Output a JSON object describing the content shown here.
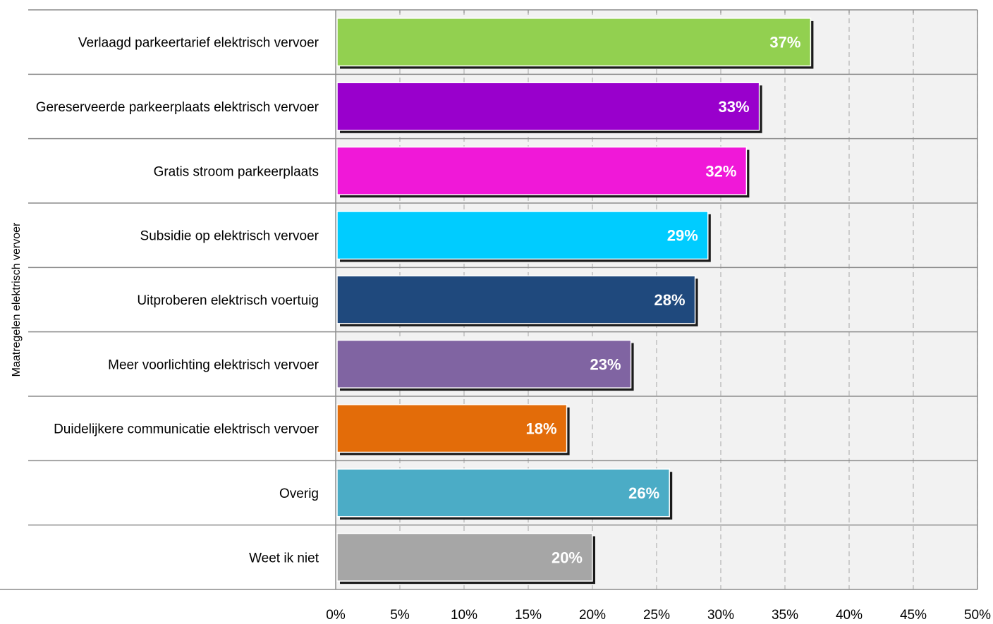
{
  "chart_data": {
    "type": "bar",
    "orientation": "horizontal",
    "title": "",
    "ylabel": "Maatregelen elektrisch vervoer",
    "xlabel": "",
    "xlim": [
      0,
      50
    ],
    "x_ticks": [
      "0%",
      "5%",
      "10%",
      "15%",
      "20%",
      "25%",
      "30%",
      "35%",
      "40%",
      "45%",
      "50%"
    ],
    "grid": true,
    "legend": "none",
    "categories": [
      "Verlaagd parkeertarief elektrisch vervoer",
      "Gereserveerde parkeerplaats elektrisch vervoer",
      "Gratis stroom parkeerplaats",
      "Subsidie op elektrisch vervoer",
      "Uitproberen elektrisch voertuig",
      "Meer voorlichting elektrisch vervoer",
      "Duidelijkere communicatie elektrisch vervoer",
      "Overig",
      "Weet ik niet"
    ],
    "values": [
      37,
      33,
      32,
      29,
      28,
      23,
      18,
      26,
      20
    ],
    "data_labels": [
      "37%",
      "33%",
      "32%",
      "29%",
      "28%",
      "23%",
      "18%",
      "26%",
      "20%"
    ],
    "colors": [
      "#92d050",
      "#9900cc",
      "#f018d8",
      "#00ccff",
      "#1f497d",
      "#8064a2",
      "#e36c09",
      "#4bacc6",
      "#a6a6a6"
    ]
  }
}
